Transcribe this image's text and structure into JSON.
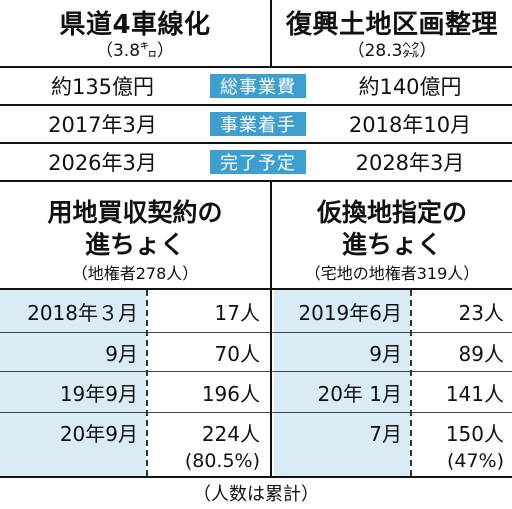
{
  "top": {
    "left_title": "県道4車線化",
    "left_sub": "（3.8㌔）",
    "right_title": "復興土地区画整理",
    "right_sub": "（28.3㌶）"
  },
  "compare": [
    {
      "left": "約135億円",
      "label": "総事業費",
      "right": "約140億円"
    },
    {
      "left": "2017年3月",
      "label": "事業着手",
      "right": "2018年10月"
    },
    {
      "left": "2026年3月",
      "label": "完了予定",
      "right": "2028年3月"
    }
  ],
  "progress_left": {
    "title_line1": "用地買収契約の",
    "title_line2": "進ちょく",
    "sub": "（地権者278人）",
    "rows": [
      {
        "date": "2018年３月",
        "value": "17人"
      },
      {
        "date": "9月",
        "value": "70人"
      },
      {
        "date": "19年9月",
        "value": "196人"
      },
      {
        "date": "20年9月",
        "value": "224人",
        "note": "(80.5%)"
      }
    ]
  },
  "progress_right": {
    "title_line1": "仮換地指定の",
    "title_line2": "進ちょく",
    "sub": "（宅地の地権者319人）",
    "rows": [
      {
        "date": "2019年6月",
        "value": "23人"
      },
      {
        "date": "9月",
        "value": "89人"
      },
      {
        "date": "20年 1月",
        "value": "141人"
      },
      {
        "date": "7月",
        "value": "150人",
        "note": "(47%)"
      }
    ]
  },
  "footer": "（人数は累計）",
  "colors": {
    "badge": "#3d9fd0",
    "shade": "#d9ecf6"
  }
}
